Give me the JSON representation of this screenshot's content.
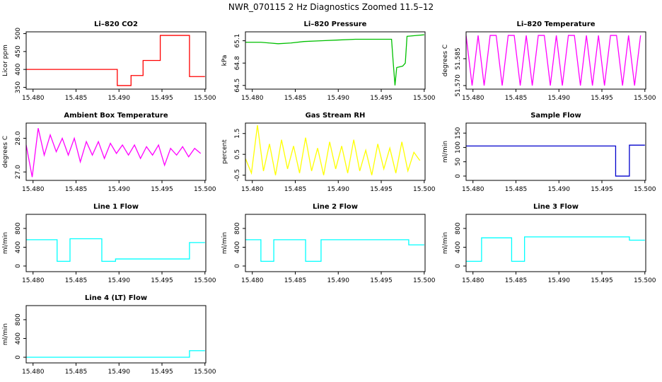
{
  "title": "NWR_070115  2 Hz Diagnostics Zoomed 11.5–12",
  "chart_data": [
    {
      "type": "line",
      "title": "Li–820 CO2",
      "ylabel": "Licor ppm",
      "color": "#ff0000",
      "x": [
        15.4792,
        15.4898,
        15.4898,
        15.4914,
        15.4914,
        15.4928,
        15.4928,
        15.4948,
        15.4948,
        15.4982,
        15.4982,
        15.5
      ],
      "values": [
        400,
        400,
        355,
        355,
        383,
        383,
        425,
        425,
        495,
        495,
        380,
        380
      ],
      "xlim": [
        15.4792,
        15.5001
      ],
      "xticks": [
        {
          "value": 15.48,
          "label": "15.480"
        },
        15.485,
        {
          "value": 15.49,
          "label": "15.490"
        },
        15.495,
        {
          "value": 15.5,
          "label": "15.500"
        }
      ],
      "ylim": [
        345,
        505
      ],
      "yticks": [
        350,
        400,
        450,
        500
      ]
    },
    {
      "type": "line",
      "title": "Li–820 Pressure",
      "ylabel": "kPa",
      "color": "#00c000",
      "x": [
        15.4792,
        15.481,
        15.483,
        15.4845,
        15.486,
        15.488,
        15.49,
        15.492,
        15.494,
        15.4962,
        15.4964,
        15.4966,
        15.4968,
        15.4975,
        15.4978,
        15.498,
        15.499,
        15.5
      ],
      "values": [
        65.08,
        65.08,
        65.06,
        65.07,
        65.09,
        65.1,
        65.11,
        65.12,
        65.12,
        65.12,
        64.8,
        64.5,
        64.74,
        64.76,
        64.8,
        65.16,
        65.17,
        65.18
      ],
      "xlim": [
        15.4792,
        15.5001
      ],
      "xticks": [
        {
          "value": 15.48,
          "label": "15.480"
        },
        15.485,
        {
          "value": 15.49,
          "label": "15.490"
        },
        15.495,
        {
          "value": 15.5,
          "label": "15.500"
        }
      ],
      "ylim": [
        64.45,
        65.22
      ],
      "yticks": [
        64.5,
        64.8,
        65.1
      ]
    },
    {
      "type": "line",
      "title": "Li–820 Temperature",
      "ylabel": "degrees C",
      "color": "#ff00ff",
      "x": [
        15.4792,
        15.4799,
        15.4806,
        15.4813,
        15.482,
        15.4827,
        15.4834,
        15.4841,
        15.4848,
        15.4855,
        15.4862,
        15.4869,
        15.4876,
        15.4883,
        15.489,
        15.4897,
        15.4904,
        15.4911,
        15.4918,
        15.4925,
        15.4932,
        15.4939,
        15.4946,
        15.4953,
        15.496,
        15.4967,
        15.4974,
        15.4981,
        15.4988,
        15.4995
      ],
      "values": [
        51.598,
        51.57,
        51.598,
        51.57,
        51.598,
        51.598,
        51.57,
        51.598,
        51.598,
        51.57,
        51.598,
        51.57,
        51.598,
        51.598,
        51.57,
        51.598,
        51.57,
        51.598,
        51.598,
        51.57,
        51.598,
        51.57,
        51.598,
        51.57,
        51.598,
        51.598,
        51.57,
        51.598,
        51.57,
        51.598
      ],
      "xlim": [
        15.4792,
        15.5001
      ],
      "xticks": [
        {
          "value": 15.48,
          "label": "15.480"
        },
        15.485,
        {
          "value": 15.49,
          "label": "15.490"
        },
        15.495,
        {
          "value": 15.5,
          "label": "15.500"
        }
      ],
      "ylim": [
        51.568,
        51.6
      ],
      "yticks": [
        {
          "value": 51.57,
          "label": "51.570"
        },
        51.585
      ]
    },
    {
      "type": "line",
      "title": "Ambient Box Temperature",
      "ylabel": "degrees C",
      "color": "#ff00ff",
      "x": [
        15.4792,
        15.4799,
        15.4806,
        15.4813,
        15.482,
        15.4827,
        15.4834,
        15.4841,
        15.4848,
        15.4855,
        15.4862,
        15.4869,
        15.4876,
        15.4883,
        15.489,
        15.4897,
        15.4904,
        15.4911,
        15.4918,
        15.4925,
        15.4932,
        15.4939,
        15.4946,
        15.4953,
        15.496,
        15.4967,
        15.4974,
        15.4981,
        15.4988,
        15.4995
      ],
      "values": [
        27.8,
        26.85,
        28.3,
        27.5,
        28.1,
        27.6,
        28.0,
        27.5,
        28.0,
        27.3,
        27.9,
        27.5,
        27.9,
        27.4,
        27.85,
        27.55,
        27.8,
        27.5,
        27.8,
        27.4,
        27.75,
        27.5,
        27.8,
        27.2,
        27.7,
        27.5,
        27.75,
        27.45,
        27.7,
        27.55
      ],
      "xlim": [
        15.4792,
        15.5001
      ],
      "xticks": [
        {
          "value": 15.48,
          "label": "15.480"
        },
        15.485,
        {
          "value": 15.49,
          "label": "15.490"
        },
        15.495,
        {
          "value": 15.5,
          "label": "15.500"
        }
      ],
      "ylim": [
        26.75,
        28.45
      ],
      "yticks": [
        {
          "value": 27,
          "label": "27.0"
        },
        {
          "value": 28,
          "label": "28.0"
        }
      ]
    },
    {
      "type": "line",
      "title": "Gas Stream RH",
      "ylabel": "percent",
      "color": "#ffff00",
      "x": [
        15.4792,
        15.4799,
        15.4806,
        15.4813,
        15.482,
        15.4827,
        15.4834,
        15.4841,
        15.4848,
        15.4855,
        15.4862,
        15.4869,
        15.4876,
        15.4883,
        15.489,
        15.4897,
        15.4904,
        15.4911,
        15.4918,
        15.4925,
        15.4932,
        15.4939,
        15.4946,
        15.4953,
        15.496,
        15.4967,
        15.4974,
        15.4981,
        15.4988,
        15.4995
      ],
      "values": [
        0.3,
        -0.4,
        1.9,
        -0.3,
        1.0,
        -0.5,
        1.2,
        -0.2,
        0.9,
        -0.4,
        1.3,
        -0.3,
        0.8,
        -0.5,
        1.1,
        -0.2,
        0.9,
        -0.4,
        1.2,
        -0.3,
        0.7,
        -0.5,
        1.0,
        -0.2,
        0.8,
        -0.4,
        1.1,
        -0.3,
        0.6,
        0.2
      ],
      "xlim": [
        15.4792,
        15.5001
      ],
      "xticks": [
        {
          "value": 15.48,
          "label": "15.480"
        },
        15.485,
        {
          "value": 15.49,
          "label": "15.490"
        },
        15.495,
        {
          "value": 15.5,
          "label": "15.500"
        }
      ],
      "ylim": [
        -0.75,
        2.0
      ],
      "yticks": [
        -0.5,
        0.5,
        1.5
      ]
    },
    {
      "type": "line",
      "title": "Sample Flow",
      "ylabel": "ml/min",
      "color": "#0000cc",
      "x": [
        15.4792,
        15.4966,
        15.4966,
        15.4982,
        15.4982,
        15.5
      ],
      "values": [
        105,
        105,
        0,
        0,
        108,
        108
      ],
      "xlim": [
        15.4792,
        15.5001
      ],
      "xticks": [
        {
          "value": 15.48,
          "label": "15.480"
        },
        15.485,
        {
          "value": 15.49,
          "label": "15.490"
        },
        15.495,
        {
          "value": 15.5,
          "label": "15.500"
        }
      ],
      "ylim": [
        -15,
        185
      ],
      "yticks": [
        0,
        50,
        100,
        150
      ]
    },
    {
      "type": "line",
      "title": "Line 1 Flow",
      "ylabel": "ml/min",
      "color": "#00ffff",
      "x": [
        15.4792,
        15.4828,
        15.4828,
        15.4843,
        15.4843,
        15.488,
        15.488,
        15.4896,
        15.4896,
        15.4982,
        15.4982,
        15.5
      ],
      "values": [
        560,
        560,
        100,
        100,
        580,
        580,
        100,
        100,
        150,
        150,
        500,
        500
      ],
      "xlim": [
        15.4792,
        15.5001
      ],
      "xticks": [
        {
          "value": 15.48,
          "label": "15.480"
        },
        15.485,
        {
          "value": 15.49,
          "label": "15.490"
        },
        15.495,
        {
          "value": 15.5,
          "label": "15.500"
        }
      ],
      "ylim": [
        -120,
        1100
      ],
      "yticks": [
        0,
        400,
        800
      ]
    },
    {
      "type": "line",
      "title": "Line 2 Flow",
      "ylabel": "ml/min",
      "color": "#00ffff",
      "x": [
        15.4792,
        15.481,
        15.481,
        15.4825,
        15.4825,
        15.4862,
        15.4862,
        15.488,
        15.488,
        15.4982,
        15.4982,
        15.5
      ],
      "values": [
        560,
        560,
        100,
        100,
        560,
        560,
        100,
        100,
        560,
        560,
        450,
        450
      ],
      "xlim": [
        15.4792,
        15.5001
      ],
      "xticks": [
        {
          "value": 15.48,
          "label": "15.480"
        },
        15.485,
        {
          "value": 15.49,
          "label": "15.490"
        },
        15.495,
        {
          "value": 15.5,
          "label": "15.500"
        }
      ],
      "ylim": [
        -120,
        1100
      ],
      "yticks": [
        0,
        400,
        800
      ]
    },
    {
      "type": "line",
      "title": "Line 3 Flow",
      "ylabel": "ml/min",
      "color": "#00ffff",
      "x": [
        15.4792,
        15.481,
        15.481,
        15.4845,
        15.4845,
        15.486,
        15.486,
        15.4982,
        15.4982,
        15.5
      ],
      "values": [
        100,
        100,
        600,
        600,
        100,
        100,
        620,
        620,
        550,
        550
      ],
      "xlim": [
        15.4792,
        15.5001
      ],
      "xticks": [
        {
          "value": 15.48,
          "label": "15.480"
        },
        15.485,
        {
          "value": 15.49,
          "label": "15.490"
        },
        15.495,
        {
          "value": 15.5,
          "label": "15.500"
        }
      ],
      "ylim": [
        -120,
        1100
      ],
      "yticks": [
        0,
        400,
        800
      ]
    },
    {
      "type": "line",
      "title": "Line 4 (LT) Flow",
      "ylabel": "ml/min",
      "color": "#00ffff",
      "x": [
        15.4792,
        15.4982,
        15.4982,
        15.5
      ],
      "values": [
        0,
        0,
        140,
        140
      ],
      "xlim": [
        15.4792,
        15.5001
      ],
      "xticks": [
        {
          "value": 15.48,
          "label": "15.480"
        },
        15.485,
        {
          "value": 15.49,
          "label": "15.490"
        },
        15.495,
        {
          "value": 15.5,
          "label": "15.500"
        }
      ],
      "ylim": [
        -120,
        1100
      ],
      "yticks": [
        0,
        400,
        800
      ]
    }
  ]
}
